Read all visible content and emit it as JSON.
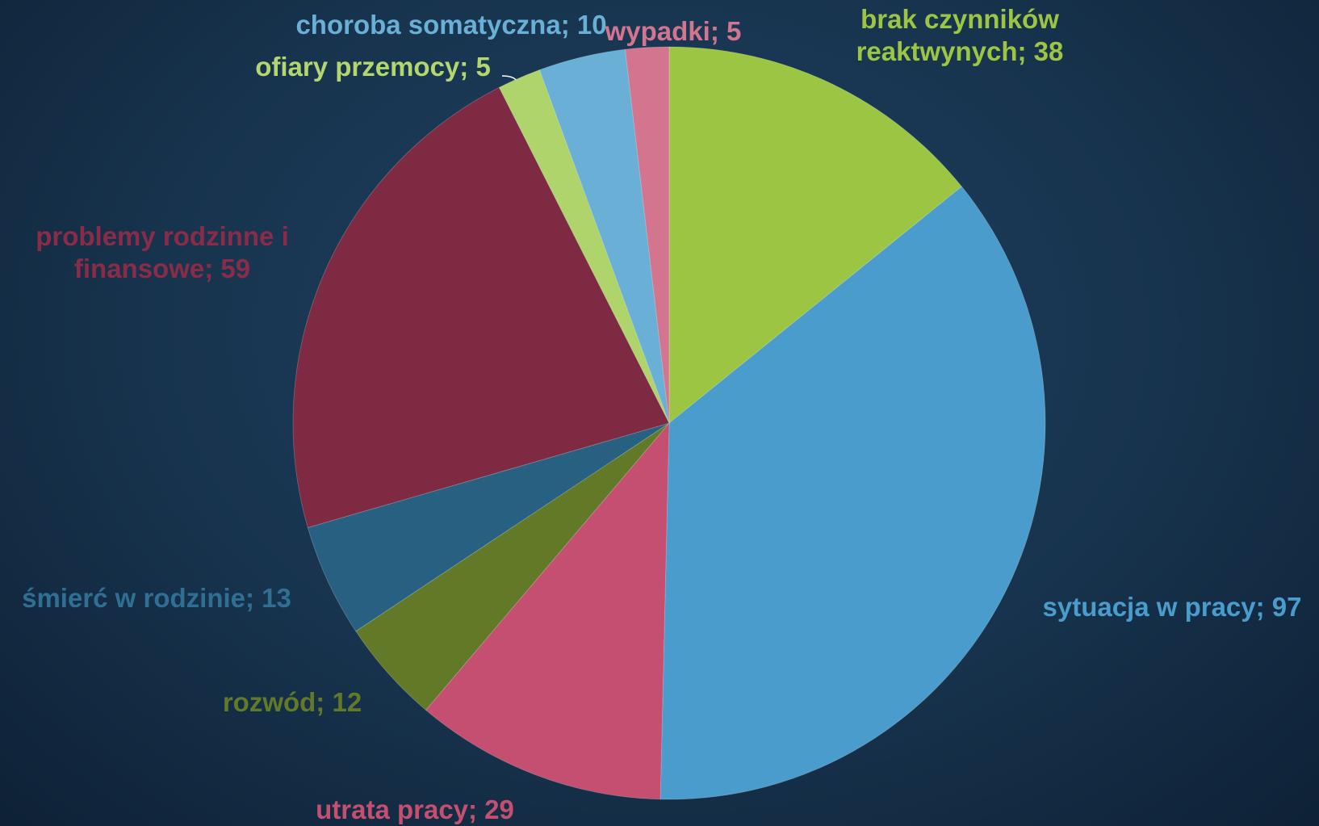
{
  "chart_data": {
    "type": "pie",
    "values": [
      38,
      97,
      29,
      12,
      13,
      59,
      5,
      10,
      5
    ],
    "value_labels": [
      "brak czynników reaktwynych; 38",
      "sytuacja w pracy; 97",
      "utrata pracy; 29",
      "rozwód; 12",
      "śmierć w rodzinie; 13",
      "problemy rodzinne i finansowe; 59",
      "ofiary przemocy; 5",
      "choroba somatyczna; 10",
      "wypadki; 5"
    ],
    "colors": [
      "#9dc544",
      "#4a9ccc",
      "#c44f70",
      "#627a28",
      "#276080",
      "#7e2a42",
      "#aed46b",
      "#6aafd6",
      "#d47590"
    ]
  }
}
